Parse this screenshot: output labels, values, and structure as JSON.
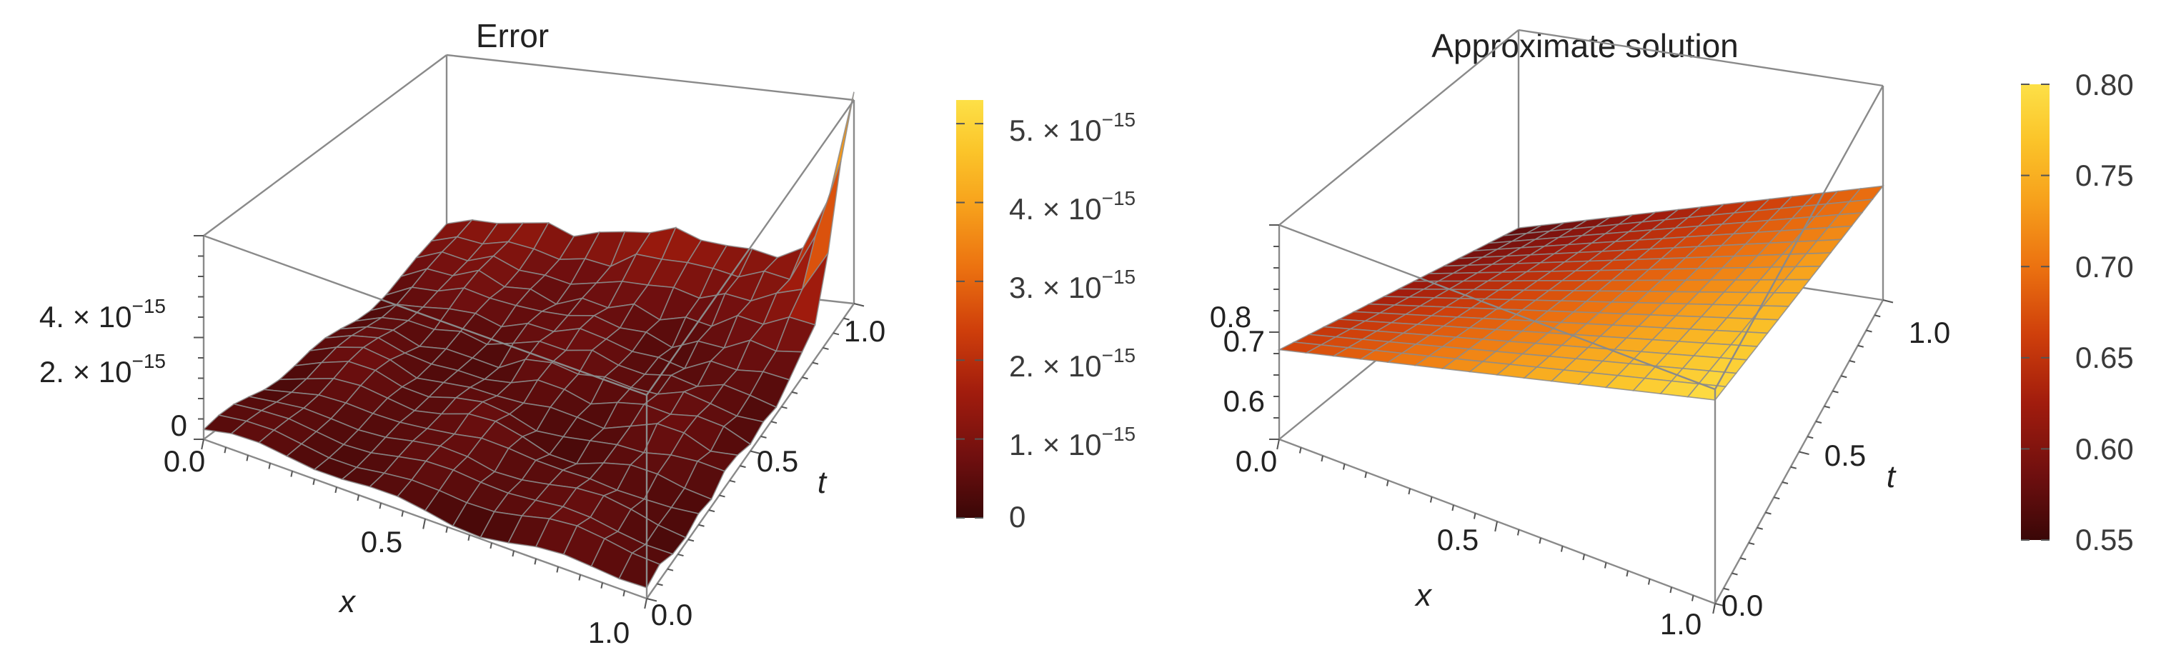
{
  "chart_data": [
    {
      "type": "surface",
      "title": "Error",
      "xlabel": "x",
      "ylabel": "t",
      "x_ticks": [
        "0.0",
        "0.5",
        "1.0"
      ],
      "t_ticks": [
        "0.0",
        "0.5",
        "1.0"
      ],
      "z_ticks": [
        {
          "mantissa": "0",
          "exponent": ""
        },
        {
          "mantissa": "2. × 10",
          "exponent": "−15"
        },
        {
          "mantissa": "4. × 10",
          "exponent": "−15"
        }
      ],
      "xlim": [
        0,
        1
      ],
      "tlim": [
        0,
        1
      ],
      "zlim": [
        0,
        5.3e-15
      ],
      "surface_description": "Error surface near machine precision; mostly below 1e-15 with noise, rising to about 5e-15 at the corner x = 1, t = 1",
      "mesh_lines": 16,
      "colorbar": {
        "min": 0,
        "max": 5.3e-15,
        "colormap": "SolarColors",
        "ticks": [
          {
            "mantissa": "0",
            "exponent": ""
          },
          {
            "mantissa": "1. × 10",
            "exponent": "−15"
          },
          {
            "mantissa": "2. × 10",
            "exponent": "−15"
          },
          {
            "mantissa": "3. × 10",
            "exponent": "−15"
          },
          {
            "mantissa": "4. × 10",
            "exponent": "−15"
          },
          {
            "mantissa": "5. × 10",
            "exponent": "−15"
          }
        ]
      }
    },
    {
      "type": "surface",
      "title": "Approximate  solution",
      "xlabel": "x",
      "ylabel": "t",
      "x_ticks": [
        "0.0",
        "0.5",
        "1.0"
      ],
      "t_ticks": [
        "0.0",
        "0.5",
        "1.0"
      ],
      "z_ticks": [
        "0.6",
        "0.7",
        "0.8"
      ],
      "xlim": [
        0,
        1
      ],
      "tlim": [
        0,
        1
      ],
      "zlim": [
        0.55,
        0.8
      ],
      "corner_values": {
        "x0_t0": 0.66,
        "x1_t0": 0.8,
        "x0_t1": 0.57,
        "x1_t1": 0.69
      },
      "mesh_lines": 16,
      "colorbar": {
        "min": 0.55,
        "max": 0.8,
        "colormap": "SolarColors",
        "ticks": [
          "0.55",
          "0.60",
          "0.65",
          "0.70",
          "0.75",
          "0.80"
        ]
      }
    }
  ],
  "colors": {
    "solar": [
      "#3a0707",
      "#6e0f0f",
      "#a11c0d",
      "#cf3f0b",
      "#ec7210",
      "#f7a21c",
      "#fbc52a",
      "#fde047"
    ],
    "box": "#8a8a8a",
    "mesh": "#8c8c8c"
  }
}
